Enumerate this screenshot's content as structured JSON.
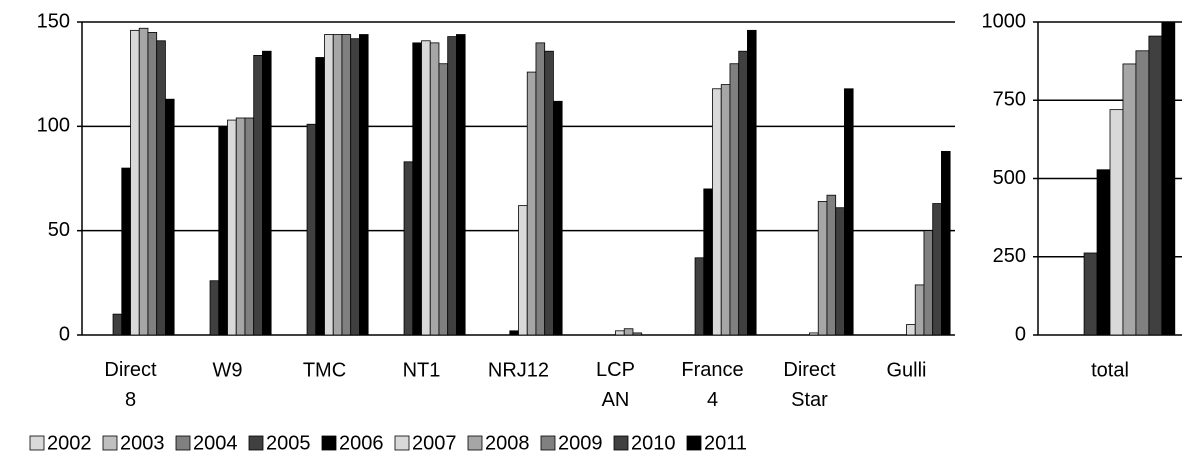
{
  "chart_data": [
    {
      "type": "bar",
      "categories": [
        "Direct 8",
        "W9",
        "TMC",
        "NT1",
        "NRJ12",
        "LCP AN",
        "France 4",
        "Direct Star",
        "Gulli"
      ],
      "series": [
        {
          "name": "2002",
          "color": "#d9d9d9",
          "values": [
            0,
            0,
            0,
            0,
            0,
            0,
            0,
            0,
            0
          ]
        },
        {
          "name": "2003",
          "color": "#bfbfbf",
          "values": [
            0,
            0,
            0,
            0,
            0,
            0,
            0,
            0,
            0
          ]
        },
        {
          "name": "2004",
          "color": "#808080",
          "values": [
            0,
            0,
            0,
            0,
            0,
            0,
            0,
            0,
            0
          ]
        },
        {
          "name": "2005",
          "color": "#404040",
          "values": [
            10,
            26,
            101,
            83,
            0,
            0,
            37,
            0,
            0
          ]
        },
        {
          "name": "2006",
          "color": "#000000",
          "values": [
            80,
            100,
            133,
            140,
            2,
            0,
            70,
            0,
            0
          ]
        },
        {
          "name": "2007",
          "color": "#d9d9d9",
          "values": [
            146,
            103,
            144,
            141,
            62,
            2,
            118,
            1,
            5
          ]
        },
        {
          "name": "2008",
          "color": "#a6a6a6",
          "values": [
            147,
            104,
            144,
            140,
            126,
            3,
            120,
            64,
            24
          ]
        },
        {
          "name": "2009",
          "color": "#808080",
          "values": [
            145,
            104,
            144,
            130,
            140,
            1,
            130,
            67,
            50
          ]
        },
        {
          "name": "2010",
          "color": "#404040",
          "values": [
            141,
            134,
            142,
            143,
            136,
            0,
            136,
            61,
            63
          ]
        },
        {
          "name": "2011",
          "color": "#000000",
          "values": [
            113,
            136,
            144,
            144,
            112,
            0,
            146,
            118,
            88
          ]
        }
      ],
      "ylim": [
        0,
        150
      ],
      "yticks": [
        0,
        50,
        100,
        150
      ],
      "grid": true,
      "legend": "bottom"
    },
    {
      "type": "bar",
      "categories": [
        "total"
      ],
      "series": [
        {
          "color": "#d9d9d9",
          "values": [
            0
          ]
        },
        {
          "color": "#bfbfbf",
          "values": [
            0
          ]
        },
        {
          "color": "#808080",
          "values": [
            0
          ]
        },
        {
          "color": "#404040",
          "values": [
            262
          ]
        },
        {
          "color": "#000000",
          "values": [
            528
          ]
        },
        {
          "color": "#d9d9d9",
          "values": [
            720
          ]
        },
        {
          "color": "#a6a6a6",
          "values": [
            866
          ]
        },
        {
          "color": "#808080",
          "values": [
            908
          ]
        },
        {
          "color": "#404040",
          "values": [
            955
          ]
        },
        {
          "color": "#000000",
          "values": [
            1000
          ]
        }
      ],
      "ylim": [
        0,
        1000
      ],
      "yticks": [
        0,
        250,
        500,
        750,
        1000
      ],
      "grid": true
    }
  ]
}
